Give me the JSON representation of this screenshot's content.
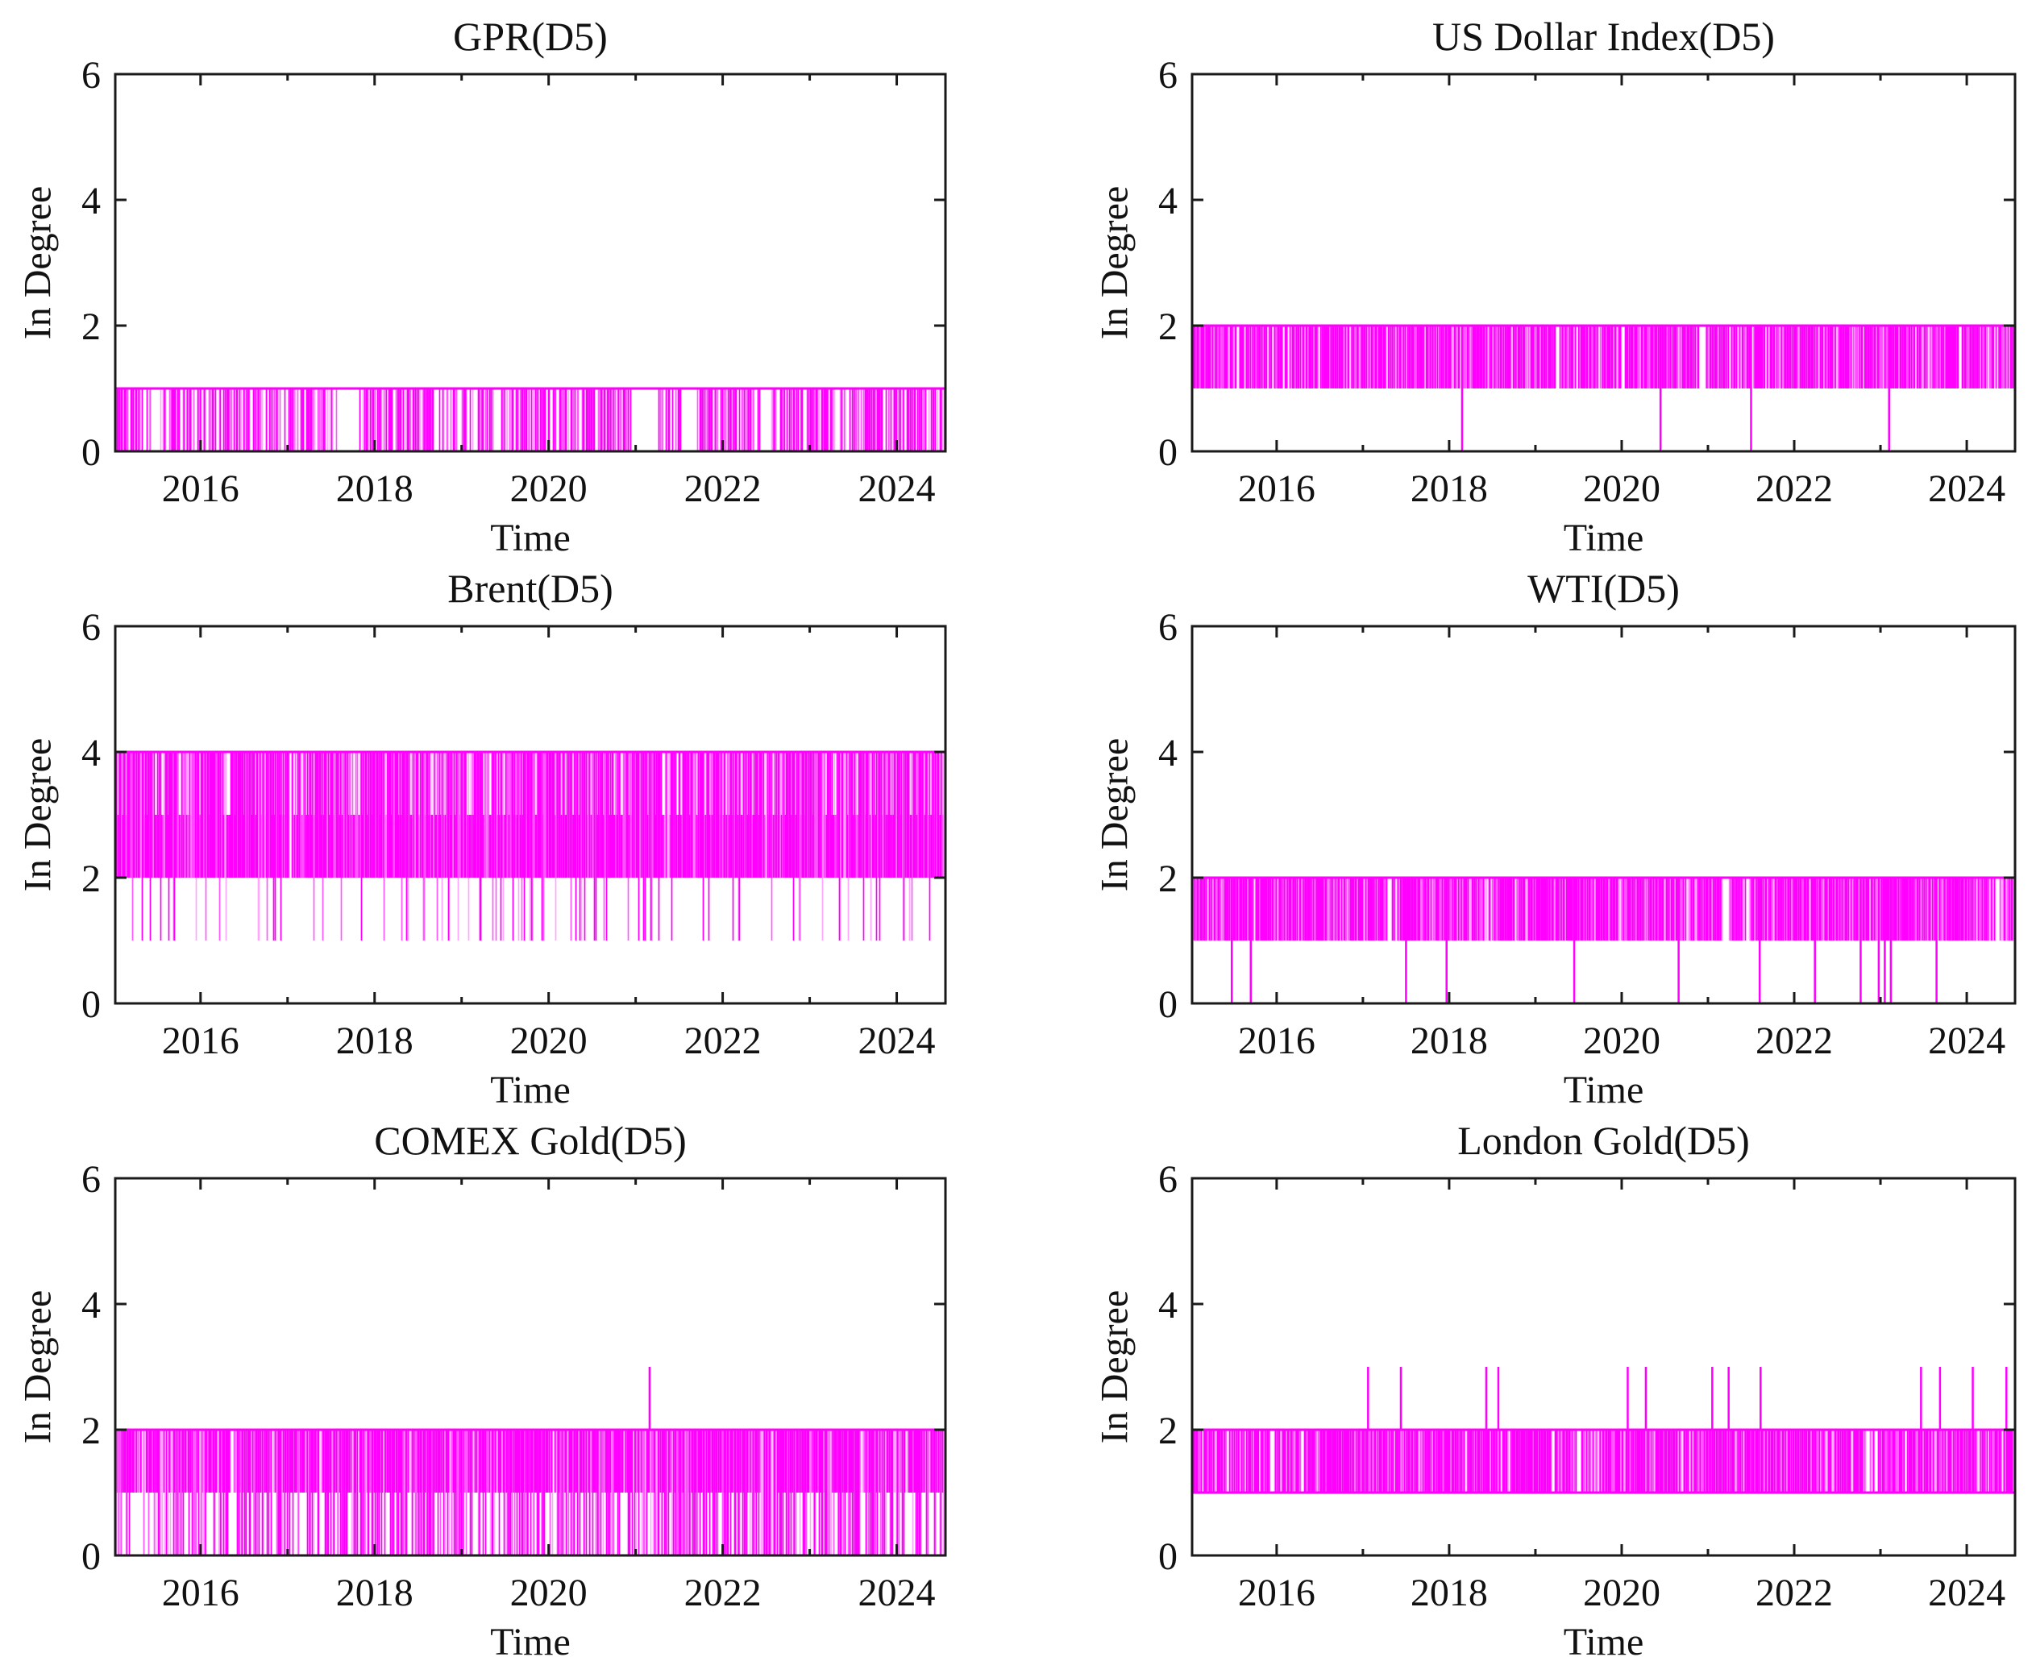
{
  "figure": {
    "background": "#ffffff",
    "kind": "3x2 grid of MATLAB-style in-degree time series subplots"
  },
  "chart_data": {
    "type": "line",
    "layout": {
      "rows": 3,
      "cols": 2,
      "grid": false,
      "legend": "none"
    },
    "color": "#FF00FF",
    "axis_color": "#1a1a1a",
    "text_color": "#111111",
    "ylabel": "In Degree",
    "xlabel": "Time",
    "ylim": [
      0,
      6
    ],
    "xlim": [
      2015.02,
      2024.56
    ],
    "yticks": [
      0,
      2,
      4,
      6
    ],
    "yticklabels": [
      "0",
      "2",
      "4",
      "6"
    ],
    "xticks": [
      2016,
      2018,
      2020,
      2022,
      2024
    ],
    "xticklabels": [
      "2016",
      "2018",
      "2020",
      "2022",
      "2024"
    ],
    "xminorticks": [
      2015,
      2017,
      2019,
      2021,
      2023
    ],
    "subplots": [
      {
        "title": "GPR(D5)",
        "seed": 7,
        "ymin_observed": 0,
        "ymax_observed": 1,
        "solid_lines": [
          1
        ],
        "stroke_options": [
          {
            "w": 0.56,
            "y0": 0,
            "y1": 1
          },
          {
            "w": 0.44,
            "y0": 1,
            "y1": 1
          }
        ],
        "quiet_intervals": [
          [
            2015.43,
            2015.52
          ],
          [
            2017.57,
            2017.82
          ],
          [
            2019.36,
            2019.46
          ],
          [
            2020.95,
            2021.26
          ],
          [
            2021.52,
            2021.71
          ],
          [
            2022.43,
            2022.56
          ]
        ],
        "events": []
      },
      {
        "title": "US Dollar Index(D5)",
        "seed": 13,
        "ymin_observed": 0,
        "ymax_observed": 2,
        "solid_lines": [
          2
        ],
        "stroke_options": [
          {
            "w": 0.83,
            "y0": 1,
            "y1": 2
          },
          {
            "w": 0.17,
            "y0": 2,
            "y1": 2
          }
        ],
        "quiet_intervals": [
          [
            2019.23,
            2019.28
          ],
          [
            2020.9,
            2020.96
          ]
        ],
        "events": [
          {
            "x": 2018.15,
            "y0": 0,
            "y1": 2
          },
          {
            "x": 2020.45,
            "y0": 0,
            "y1": 2
          },
          {
            "x": 2021.5,
            "y0": 0,
            "y1": 2
          },
          {
            "x": 2023.1,
            "y0": 0,
            "y1": 2
          }
        ]
      },
      {
        "title": "Brent(D5)",
        "seed": 21,
        "ymin_observed": 1,
        "ymax_observed": 4,
        "solid_lines": [
          4
        ],
        "stroke_options": [
          {
            "w": 0.66,
            "y0": 2,
            "y1": 4
          },
          {
            "w": 0.23,
            "y0": 2,
            "y1": 3
          },
          {
            "w": 0.11,
            "y0": 1,
            "y1": 4
          }
        ],
        "quiet_intervals": [
          [
            2017.02,
            2017.05
          ]
        ],
        "events": []
      },
      {
        "title": "WTI(D5)",
        "seed": 5,
        "ymin_observed": 0,
        "ymax_observed": 2,
        "solid_lines": [
          2
        ],
        "stroke_options": [
          {
            "w": 0.86,
            "y0": 1,
            "y1": 2
          },
          {
            "w": 0.14,
            "y0": 2,
            "y1": 2
          }
        ],
        "quiet_intervals": [
          [
            2017.28,
            2017.34
          ],
          [
            2021.18,
            2021.24
          ],
          [
            2021.44,
            2021.48
          ]
        ],
        "events": [
          {
            "x": 2015.48,
            "y0": 0,
            "y1": 2
          },
          {
            "x": 2015.7,
            "y0": 0,
            "y1": 2
          },
          {
            "x": 2017.5,
            "y0": 0,
            "y1": 2
          },
          {
            "x": 2017.97,
            "y0": 0,
            "y1": 2
          },
          {
            "x": 2019.45,
            "y0": 0,
            "y1": 2
          },
          {
            "x": 2020.66,
            "y0": 0,
            "y1": 2
          },
          {
            "x": 2021.6,
            "y0": 0,
            "y1": 2
          },
          {
            "x": 2022.24,
            "y0": 0,
            "y1": 2
          },
          {
            "x": 2022.77,
            "y0": 0,
            "y1": 2
          },
          {
            "x": 2022.98,
            "y0": 0,
            "y1": 2
          },
          {
            "x": 2023.05,
            "y0": 0,
            "y1": 2
          },
          {
            "x": 2023.12,
            "y0": 0,
            "y1": 2
          },
          {
            "x": 2023.65,
            "y0": 0,
            "y1": 2
          }
        ]
      },
      {
        "title": "COMEX Gold(D5)",
        "seed": 9,
        "ymin_observed": 0,
        "ymax_observed": 3,
        "solid_lines": [
          2
        ],
        "stroke_options": [
          {
            "w": 0.44,
            "y0": 0,
            "y1": 2
          },
          {
            "w": 0.46,
            "y0": 1,
            "y1": 2
          },
          {
            "w": 0.1,
            "y0": 2,
            "y1": 2
          }
        ],
        "quiet_intervals": [
          [
            2016.34,
            2016.38
          ]
        ],
        "events": [
          {
            "x": 2021.16,
            "y0": 2,
            "y1": 3
          }
        ]
      },
      {
        "title": "London Gold(D5)",
        "seed": 3,
        "ymin_observed": 1,
        "ymax_observed": 3,
        "solid_lines": [
          1,
          2
        ],
        "stroke_options": [
          {
            "w": 0.87,
            "y0": 1,
            "y1": 2
          },
          {
            "w": 0.13,
            "y0": 2,
            "y1": 2
          }
        ],
        "quiet_intervals": [
          [
            2015.93,
            2015.97
          ],
          [
            2016.28,
            2016.31
          ],
          [
            2019.48,
            2019.53
          ],
          [
            2022.83,
            2022.88
          ],
          [
            2022.93,
            2022.97
          ],
          [
            2023.28,
            2023.31
          ]
        ],
        "events": [
          {
            "x": 2017.06,
            "y0": 2,
            "y1": 3
          },
          {
            "x": 2017.44,
            "y0": 2,
            "y1": 3
          },
          {
            "x": 2018.43,
            "y0": 2,
            "y1": 3
          },
          {
            "x": 2018.57,
            "y0": 2,
            "y1": 3
          },
          {
            "x": 2020.07,
            "y0": 2,
            "y1": 3
          },
          {
            "x": 2020.28,
            "y0": 2,
            "y1": 3
          },
          {
            "x": 2021.05,
            "y0": 2,
            "y1": 3
          },
          {
            "x": 2021.24,
            "y0": 2,
            "y1": 3
          },
          {
            "x": 2021.61,
            "y0": 2,
            "y1": 3
          },
          {
            "x": 2023.47,
            "y0": 2,
            "y1": 3
          },
          {
            "x": 2023.69,
            "y0": 2,
            "y1": 3
          },
          {
            "x": 2024.07,
            "y0": 2,
            "y1": 3
          },
          {
            "x": 2024.46,
            "y0": 2,
            "y1": 3
          }
        ]
      }
    ]
  }
}
